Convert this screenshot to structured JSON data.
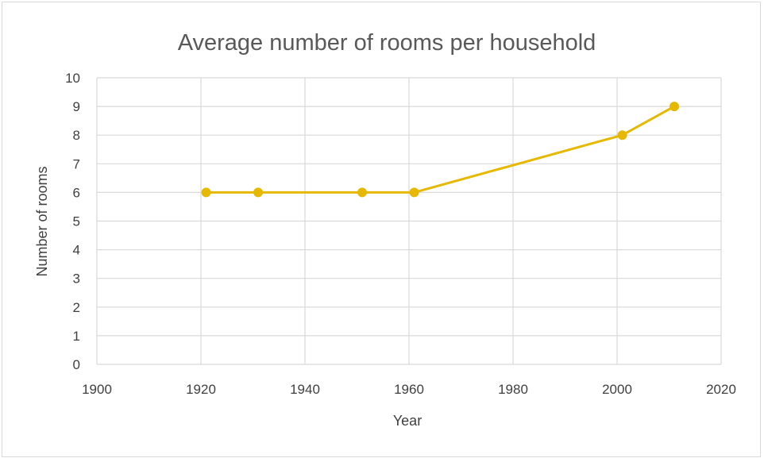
{
  "chart_data": {
    "type": "line",
    "title": "Average number of rooms per household",
    "xlabel": "Year",
    "ylabel": "Number of rooms",
    "xlim": [
      1900,
      2020
    ],
    "ylim": [
      0,
      10
    ],
    "x_ticks": [
      1900,
      1920,
      1940,
      1960,
      1980,
      2000,
      2020
    ],
    "y_ticks": [
      0,
      1,
      2,
      3,
      4,
      5,
      6,
      7,
      8,
      9,
      10
    ],
    "grid": true,
    "legend": "none",
    "series": [
      {
        "x": [
          1921,
          1931,
          1951,
          1961,
          2001,
          2011
        ],
        "y": [
          6,
          6,
          6,
          6,
          8,
          9
        ],
        "color": "#e6b800",
        "marker": "circle"
      }
    ]
  },
  "colors": {
    "grid": "#d9d9d9",
    "line": "#e6b800",
    "marker": "#e6b800",
    "text": "#404040",
    "title": "#595959"
  }
}
